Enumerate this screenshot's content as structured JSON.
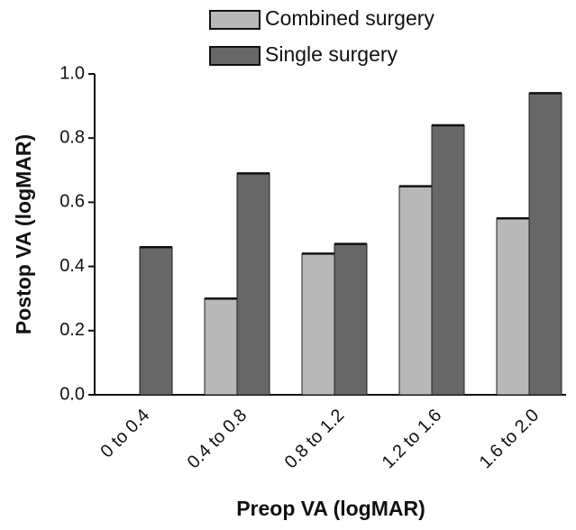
{
  "chart_data": {
    "type": "bar",
    "categories": [
      "0 to 0.4",
      "0.4 to 0.8",
      "0.8 to 1.2",
      "1.2 to 1.6",
      "1.6 to 2.0"
    ],
    "series": [
      {
        "name": "Combined surgery",
        "color": "#b8b8b8",
        "values": [
          null,
          0.3,
          0.44,
          0.65,
          0.55
        ]
      },
      {
        "name": "Single surgery",
        "color": "#676767",
        "values": [
          0.46,
          0.69,
          0.47,
          0.84,
          0.94
        ]
      }
    ],
    "ylim": [
      0,
      1
    ],
    "yticks": [
      {
        "value": 0,
        "label": "0.0"
      },
      0.2,
      0.4,
      0.6,
      0.8,
      {
        "value": 1,
        "label": "1.0"
      }
    ],
    "xlabel": "Preop VA (logMAR)",
    "ylabel": "Postop VA (logMAR)"
  }
}
